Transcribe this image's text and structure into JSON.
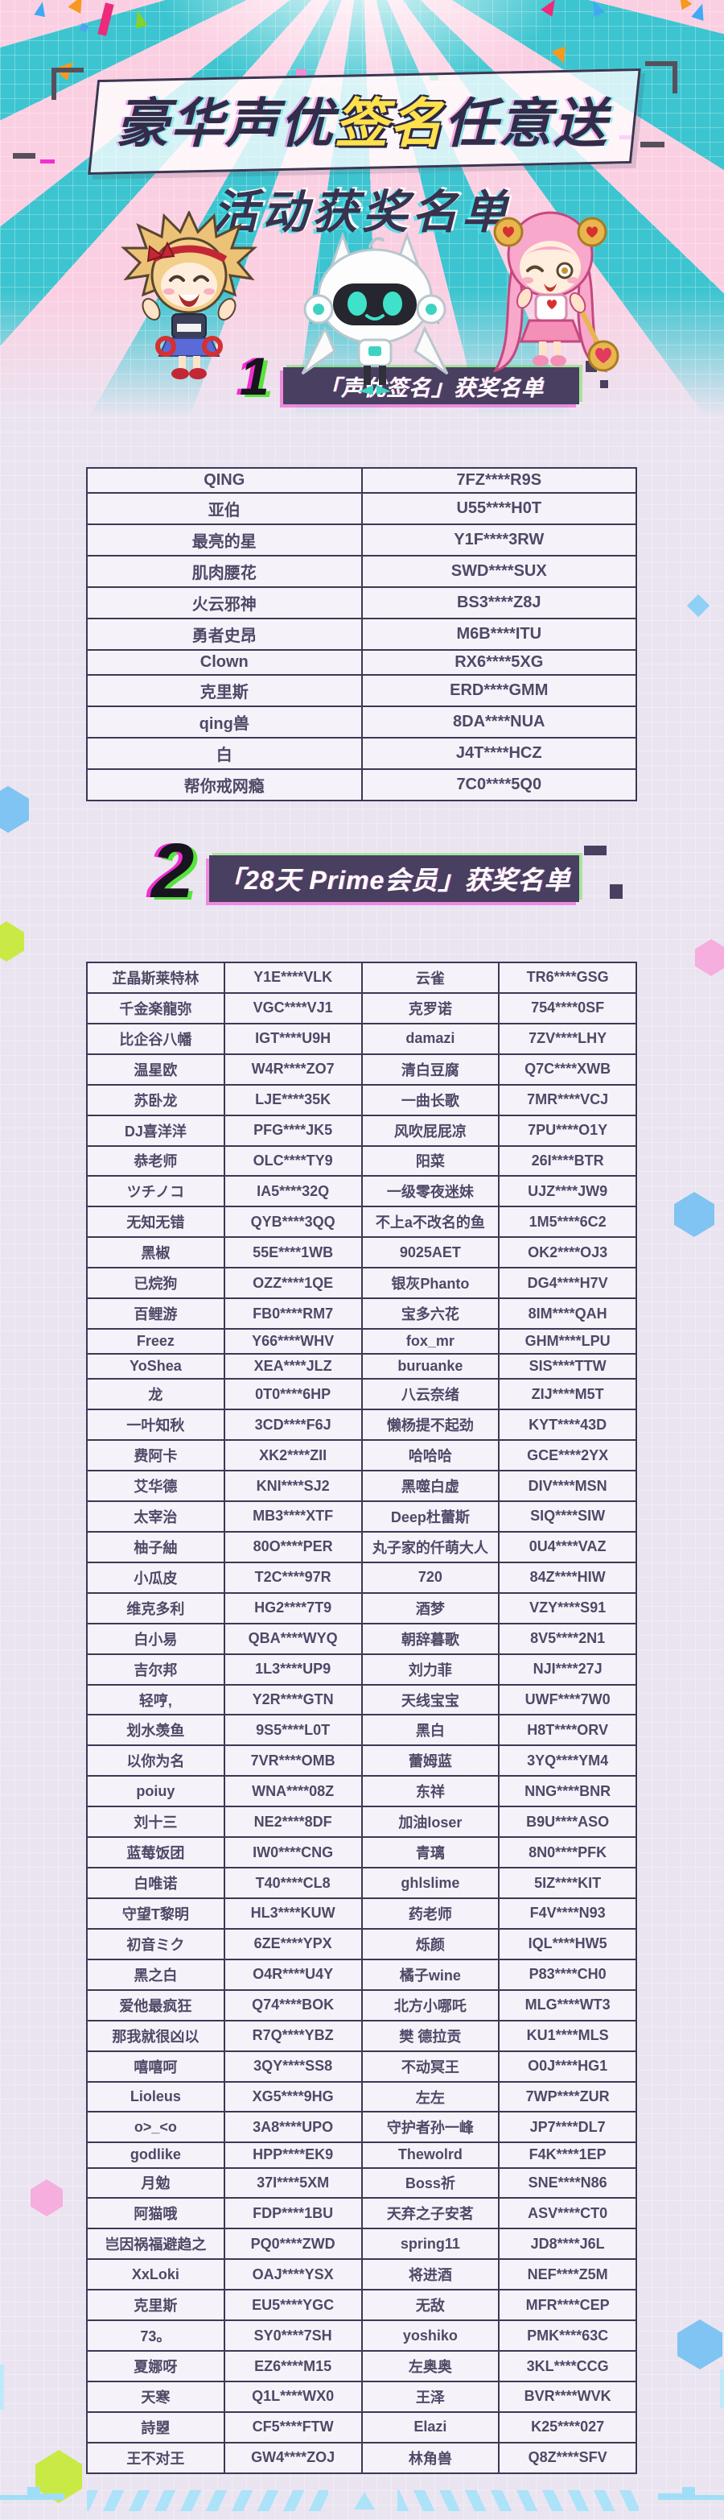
{
  "page": {
    "title_prefix": "豪华声优",
    "title_highlight": "签名",
    "title_suffix": "任意送",
    "subtitle": "活动获奖名单"
  },
  "colors": {
    "accent_teal": "#2cc4ce",
    "accent_pink": "#fbcfe2",
    "highlight_yellow": "#ffe14d",
    "banner_purple": "#493f60",
    "glitch_magenta": "#ef2fd0",
    "glitch_green": "#55e43c",
    "table_border": "#3e3855",
    "table_text": "#4f4966"
  },
  "characters": [
    {
      "name": "blonde-girl-mascot"
    },
    {
      "name": "robot-mascot"
    },
    {
      "name": "pink-girl-mascot"
    }
  ],
  "sections": [
    {
      "number": "1",
      "title": "「声优签名」获奖名单",
      "rows": [
        [
          "QING",
          "7FZ****R9S"
        ],
        [
          "亚伯",
          "U55****H0T"
        ],
        [
          "最亮的星",
          "Y1F****3RW"
        ],
        [
          "肌肉腰花",
          "SWD****SUX"
        ],
        [
          "火云邪神",
          "BS3****Z8J"
        ],
        [
          "勇者史昂",
          "M6B****ITU"
        ],
        [
          "Clown",
          "RX6****5XG"
        ],
        [
          "克里斯",
          "ERD****GMM"
        ],
        [
          "qing兽",
          "8DA****NUA"
        ],
        [
          "白",
          "J4T****HCZ"
        ],
        [
          "帮你戒网瘾",
          "7C0****5Q0"
        ]
      ]
    },
    {
      "number": "2",
      "title": "「28天 Prime会员」获奖名单",
      "rows": [
        [
          "芷晶斯莱特林",
          "Y1E****VLK",
          "云雀",
          "TR6****GSG"
        ],
        [
          "千金楽龍弥",
          "VGC****VJ1",
          "克罗诺",
          "754****0SF"
        ],
        [
          "比企谷八幡",
          "IGT****U9H",
          "damazi",
          "7ZV****LHY"
        ],
        [
          "温星欧",
          "W4R****ZO7",
          "清白豆腐",
          "Q7C****XWB"
        ],
        [
          "苏卧龙",
          "LJE****35K",
          "一曲长歌",
          "7MR****VCJ"
        ],
        [
          "DJ喜洋洋",
          "PFG****JK5",
          "风吹屁屁凉",
          "7PU****O1Y"
        ],
        [
          "恭老师",
          "OLC****TY9",
          "阳菜",
          "26I****BTR"
        ],
        [
          "ツチノコ",
          "IA5****32Q",
          "一级零夜迷妹",
          "UJZ****JW9"
        ],
        [
          "无知无错",
          "QYB****3QQ",
          "不上a不改名的鱼",
          "1M5****6C2"
        ],
        [
          "黑椒",
          "55E****1WB",
          "9025AET",
          "OK2****OJ3"
        ],
        [
          "已烷狗",
          "OZZ****1QE",
          "银灰Phanto",
          "DG4****H7V"
        ],
        [
          "百鲤游",
          "FB0****RM7",
          "宝多六花",
          "8IM****QAH"
        ],
        [
          "Freez",
          "Y66****WHV",
          "fox_mr",
          "GHM****LPU"
        ],
        [
          "YoShea",
          "XEA****JLZ",
          "buruanke",
          "SIS****TTW"
        ],
        [
          "龙",
          "0T0****6HP",
          "八云奈绪",
          "ZIJ****M5T"
        ],
        [
          "一叶知秋",
          "3CD****F6J",
          "懒杨提不起劲",
          "KYT****43D"
        ],
        [
          "费阿卡",
          "XK2****ZII",
          "哈哈哈",
          "GCE****2YX"
        ],
        [
          "艾华德",
          "KNI****SJ2",
          "黑噬白虚",
          "DIV****MSN"
        ],
        [
          "太宰治",
          "MB3****XTF",
          "Deep杜蕾斯",
          "SIQ****SIW"
        ],
        [
          "柚子紬",
          "80O****PER",
          "丸子家的仟萌大人",
          "0U4****VAZ"
        ],
        [
          "小瓜皮",
          "T2C****97R",
          "720",
          "84Z****HIW"
        ],
        [
          "维克多利",
          "HG2****7T9",
          "酒梦",
          "VZY****S91"
        ],
        [
          "白小易",
          "QBA****WYQ",
          "朝辞暮歌",
          "8V5****2N1"
        ],
        [
          "吉尔邦",
          "1L3****UP9",
          "刘力菲",
          "NJI****27J"
        ],
        [
          "轻哼,",
          "Y2R****GTN",
          "天线宝宝",
          "UWF****7W0"
        ],
        [
          "划水羡鱼",
          "9S5****L0T",
          "黑白",
          "H8T****ORV"
        ],
        [
          "以你为名",
          "7VR****OMB",
          "蕾姆蓝",
          "3YQ****YM4"
        ],
        [
          "poiuy",
          "WNA****08Z",
          "东祥",
          "NNG****BNR"
        ],
        [
          "刘十三",
          "NE2****8DF",
          "加油loser",
          "B9U****ASO"
        ],
        [
          "蓝莓饭团",
          "IW0****CNG",
          "青璃",
          "8N0****PFK"
        ],
        [
          "白唯诺",
          "T40****CL8",
          "ghlslime",
          "5IZ****KIT"
        ],
        [
          "守望T黎明",
          "HL3****KUW",
          "药老师",
          "F4V****N93"
        ],
        [
          "初音ミク",
          "6ZE****YPX",
          "烁颜",
          "IQL****HW5"
        ],
        [
          "黑之白",
          "O4R****U4Y",
          "橘子wine",
          "P83****CH0"
        ],
        [
          "爱他最疯狂",
          "Q74****BOK",
          "北方小哪吒",
          "MLG****WT3"
        ],
        [
          "那我就很凶以",
          "R7Q****YBZ",
          "樊 德拉贡",
          "KU1****MLS"
        ],
        [
          "嘻嘻呵",
          "3QY****SS8",
          "不动冥王",
          "O0J****HG1"
        ],
        [
          "Lioleus",
          "XG5****9HG",
          "左左",
          "7WP****ZUR"
        ],
        [
          "o>_<o",
          "3A8****UPO",
          "守护者孙一峰",
          "JP7****DL7"
        ],
        [
          "godlike",
          "HPP****EK9",
          "Thewolrd",
          "F4K****1EP"
        ],
        [
          "月勉",
          "37I****5XM",
          "Boss祈",
          "SNE****N86"
        ],
        [
          "阿猫哦",
          "FDP****1BU",
          "天弃之子安茗",
          "ASV****CT0"
        ],
        [
          "岂因祸福避趋之",
          "PQ0****ZWD",
          "spring11",
          "JD8****J6L"
        ],
        [
          "XxLoki",
          "OAJ****YSX",
          "将进酒",
          "NEF****Z5M"
        ],
        [
          "克里斯",
          "EU5****YGC",
          "无敌",
          "MFR****CEP"
        ],
        [
          "73。",
          "SY0****7SH",
          "yoshiko",
          "PMK****63C"
        ],
        [
          "夏娜呀",
          "EZ6****M15",
          "左奥奥",
          "3KL****CCG"
        ],
        [
          "天寒",
          "Q1L****WX0",
          "王泽",
          "BVR****WVK"
        ],
        [
          "詩曌",
          "CF5****FTW",
          "Elazi",
          "K25****027"
        ],
        [
          "王不对王",
          "GW4****ZOJ",
          "林角兽",
          "Q8Z****SFV"
        ]
      ]
    }
  ]
}
